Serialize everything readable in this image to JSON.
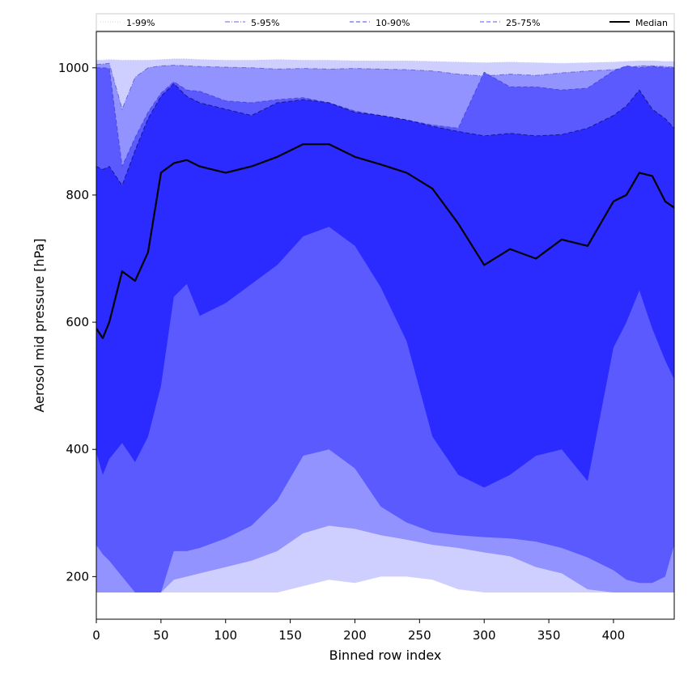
{
  "chart_data": {
    "type": "area",
    "title": "",
    "xlabel": "Binned row index",
    "ylabel": "Aerosol mid pressure [hPa]",
    "xlim": [
      0,
      447
    ],
    "ylim": [
      133,
      1057
    ],
    "x_ticks": [
      0,
      50,
      100,
      150,
      200,
      250,
      300,
      350,
      400
    ],
    "y_ticks": [
      200,
      400,
      600,
      800,
      1000
    ],
    "grid": false,
    "legend_placement": "top",
    "x": [
      0,
      5,
      10,
      20,
      30,
      40,
      50,
      60,
      70,
      80,
      100,
      120,
      140,
      160,
      180,
      200,
      220,
      240,
      260,
      280,
      300,
      320,
      340,
      360,
      380,
      400,
      410,
      420,
      430,
      440,
      447
    ],
    "series": [
      {
        "name": "1-99%",
        "style": "dotted",
        "color": "#cfcfff",
        "lower": [
          175,
          175,
          175,
          175,
          175,
          175,
          175,
          175,
          175,
          175,
          175,
          175,
          175,
          185,
          195,
          190,
          200,
          200,
          195,
          180,
          175,
          175,
          175,
          175,
          175,
          175,
          175,
          175,
          175,
          175,
          175
        ],
        "upper": [
          1012,
          1012,
          1013,
          1012,
          1012,
          1012,
          1013,
          1014,
          1014,
          1013,
          1012,
          1012,
          1013,
          1012,
          1012,
          1011,
          1011,
          1011,
          1010,
          1009,
          1008,
          1009,
          1008,
          1007,
          1008,
          1009,
          1010,
          1011,
          1011,
          1010,
          1010
        ]
      },
      {
        "name": "5-95%",
        "style": "dashdot",
        "color": "#9393ff",
        "lower": [
          175,
          175,
          175,
          175,
          175,
          175,
          175,
          195,
          200,
          205,
          215,
          225,
          240,
          268,
          280,
          275,
          265,
          258,
          250,
          245,
          238,
          232,
          215,
          205,
          180,
          175,
          175,
          175,
          175,
          175,
          175
        ],
        "upper": [
          1005,
          1006,
          1007,
          935,
          985,
          1000,
          1003,
          1004,
          1003,
          1002,
          1001,
          1000,
          998,
          999,
          998,
          999,
          998,
          997,
          995,
          990,
          987,
          990,
          988,
          992,
          995,
          997,
          1000,
          1003,
          1003,
          1002,
          1001
        ]
      },
      {
        "name": "10-90%",
        "style": "dashed",
        "color": "#5a5aff",
        "lower": [
          250,
          235,
          225,
          200,
          175,
          175,
          175,
          240,
          240,
          245,
          260,
          280,
          320,
          390,
          400,
          370,
          310,
          285,
          270,
          265,
          262,
          260,
          255,
          245,
          230,
          210,
          195,
          190,
          190,
          200,
          250
        ],
        "upper": [
          1000,
          1000,
          999,
          845,
          890,
          930,
          960,
          978,
          965,
          963,
          948,
          945,
          950,
          953,
          945,
          932,
          925,
          918,
          910,
          905,
          993,
          970,
          970,
          965,
          968,
          995,
          1003,
          1000,
          1002,
          1000,
          1000
        ]
      },
      {
        "name": "25-75%",
        "style": "dashed",
        "color": "#2b2bff",
        "lower": [
          395,
          360,
          385,
          410,
          380,
          420,
          500,
          640,
          660,
          610,
          630,
          660,
          690,
          735,
          750,
          720,
          655,
          570,
          420,
          360,
          340,
          360,
          390,
          400,
          350,
          560,
          600,
          650,
          590,
          540,
          510
        ],
        "upper": [
          845,
          840,
          845,
          815,
          870,
          920,
          955,
          975,
          955,
          945,
          935,
          925,
          945,
          950,
          945,
          930,
          925,
          918,
          908,
          900,
          893,
          897,
          893,
          895,
          905,
          925,
          940,
          965,
          935,
          920,
          905
        ]
      },
      {
        "name": "Median",
        "style": "solid",
        "color": "#000000",
        "values": [
          590,
          575,
          600,
          680,
          665,
          710,
          835,
          850,
          855,
          845,
          835,
          845,
          860,
          880,
          880,
          860,
          848,
          835,
          810,
          755,
          690,
          715,
          700,
          730,
          720,
          790,
          800,
          835,
          830,
          790,
          780
        ]
      }
    ]
  }
}
